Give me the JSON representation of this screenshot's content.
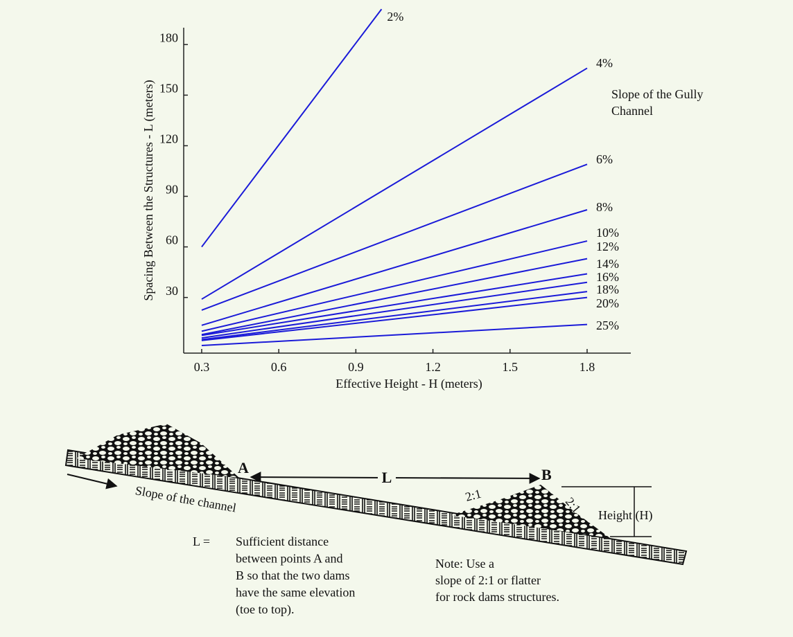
{
  "chart_data": {
    "type": "line",
    "xlabel": "Effective Height - H (meters)",
    "ylabel": "Spacing Between the Structures - L (meters)",
    "legend_title": [
      "Slope of the Gully",
      "Channel"
    ],
    "xlim": [
      0.23,
      1.97
    ],
    "ylim": [
      -3,
      190
    ],
    "xticks": [
      0.3,
      0.6,
      0.9,
      1.2,
      1.5,
      1.8
    ],
    "yticks": [
      30,
      60,
      90,
      120,
      150,
      180
    ],
    "series": [
      {
        "name": "2%",
        "color": "#1a1ad8",
        "x": [
          0.3,
          1.0
        ],
        "values": [
          60,
          201
        ]
      },
      {
        "name": "4%",
        "color": "#1a1ad8",
        "x": [
          0.3,
          1.8
        ],
        "values": [
          29,
          166
        ]
      },
      {
        "name": "6%",
        "color": "#1a1ad8",
        "x": [
          0.3,
          1.8
        ],
        "values": [
          22.5,
          109
        ]
      },
      {
        "name": "8%",
        "color": "#1a1ad8",
        "x": [
          0.3,
          1.8
        ],
        "values": [
          13.5,
          82
        ]
      },
      {
        "name": "10%",
        "color": "#1a1ad8",
        "x": [
          0.3,
          1.8
        ],
        "values": [
          10,
          63.5
        ]
      },
      {
        "name": "12%",
        "color": "#1a1ad8",
        "x": [
          0.3,
          1.8
        ],
        "values": [
          8,
          53
        ]
      },
      {
        "name": "14%",
        "color": "#1a1ad8",
        "x": [
          0.3,
          1.8
        ],
        "values": [
          7.5,
          44
        ]
      },
      {
        "name": "16%",
        "color": "#1a1ad8",
        "x": [
          0.3,
          1.8
        ],
        "values": [
          6,
          39
        ]
      },
      {
        "name": "18%",
        "color": "#1a1ad8",
        "x": [
          0.3,
          1.8
        ],
        "values": [
          5,
          33.5
        ]
      },
      {
        "name": "20%",
        "color": "#1a1ad8",
        "x": [
          0.3,
          1.8
        ],
        "values": [
          4.5,
          30
        ]
      },
      {
        "name": "25%",
        "color": "#1a1ad8",
        "x": [
          0.3,
          1.8
        ],
        "values": [
          1.5,
          14
        ]
      }
    ]
  },
  "diagram": {
    "point_a": "A",
    "point_b": "B",
    "distance": "L",
    "ratio_left": "2:1",
    "ratio_right": "2:1",
    "height": "Height  (H)",
    "slope": "Slope  of  the  channel",
    "definition_term": "L  =",
    "definition": [
      "Sufficient distance",
      "between points A and",
      "B so that the two dams",
      "have the same elevation",
      "(toe to top)."
    ],
    "note": [
      "Note: Use a",
      "slope of  2:1 or flatter",
      "for rock dams structures."
    ]
  }
}
